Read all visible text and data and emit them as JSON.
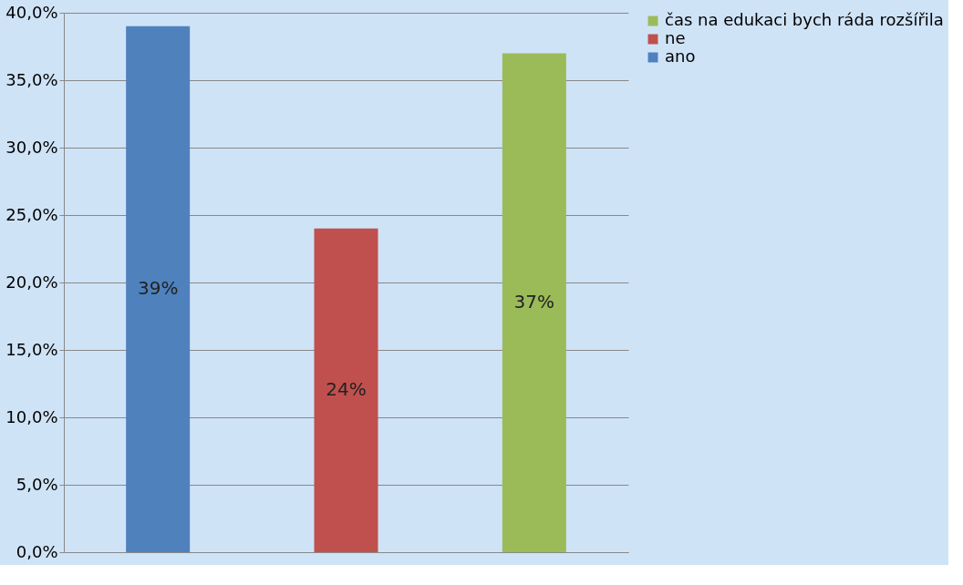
{
  "chart_data": {
    "type": "bar",
    "categories": [
      null,
      null,
      null
    ],
    "series": [
      {
        "name": "čas na edukaci bych ráda rozšířila",
        "color": "#9bbb59",
        "values": [
          null,
          null,
          37
        ],
        "value_labels": [
          null,
          null,
          "37%"
        ]
      },
      {
        "name": "ne",
        "color": "#c0504d",
        "values": [
          null,
          24,
          null
        ],
        "value_labels": [
          null,
          "24%",
          null
        ]
      },
      {
        "name": "ano",
        "color": "#4f81bd",
        "values": [
          39,
          null,
          null
        ],
        "value_labels": [
          "39%",
          null,
          null
        ]
      }
    ],
    "ylim": [
      0,
      40
    ],
    "yticks": [
      {
        "value": 0,
        "label": "0,0%"
      },
      {
        "value": 5,
        "label": "5,0%"
      },
      {
        "value": 10,
        "label": "10,0%"
      },
      {
        "value": 15,
        "label": "15,0%"
      },
      {
        "value": 20,
        "label": "20,0%"
      },
      {
        "value": 25,
        "label": "25,0%"
      },
      {
        "value": 30,
        "label": "30,0%"
      },
      {
        "value": 35,
        "label": "35,0%"
      },
      {
        "value": 40,
        "label": "40,0%"
      }
    ],
    "grid": "y",
    "legend": "right",
    "tick_labels": "y"
  }
}
